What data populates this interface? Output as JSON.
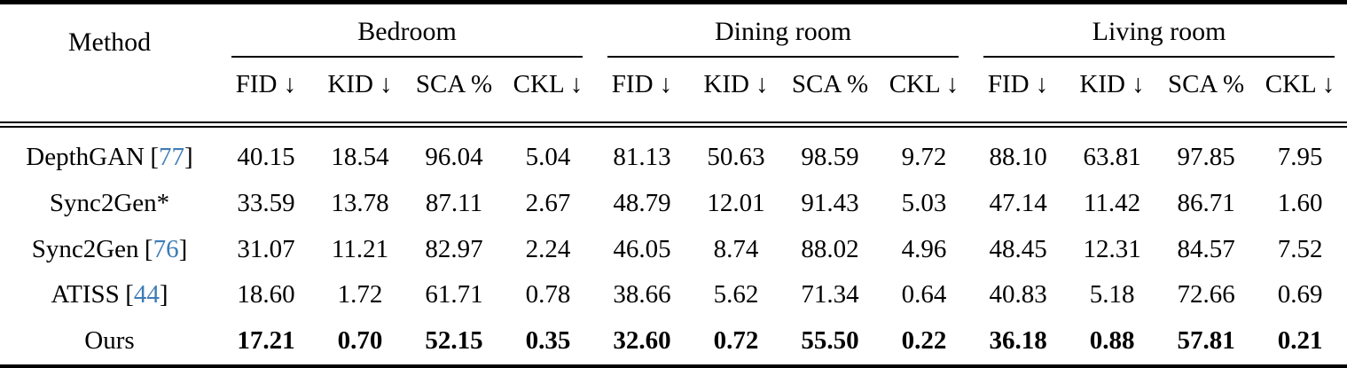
{
  "table": {
    "method_header": "Method",
    "groups": [
      {
        "label": "Bedroom"
      },
      {
        "label": "Dining room"
      },
      {
        "label": "Living room"
      }
    ],
    "metric_labels": [
      "FID ↓",
      "KID ↓",
      "SCA %",
      "CKL ↓"
    ],
    "rows": [
      {
        "method": "DepthGAN",
        "cite_open": "[",
        "cite_num": "77",
        "cite_close": "]",
        "values": [
          "40.15",
          "18.54",
          "96.04",
          "5.04",
          "81.13",
          "50.63",
          "98.59",
          "9.72",
          "88.10",
          "63.81",
          "97.85",
          "7.95"
        ]
      },
      {
        "method": "Sync2Gen*",
        "values": [
          "33.59",
          "13.78",
          "87.11",
          "2.67",
          "48.79",
          "12.01",
          "91.43",
          "5.03",
          "47.14",
          "11.42",
          "86.71",
          "1.60"
        ]
      },
      {
        "method": "Sync2Gen",
        "cite_open": "[",
        "cite_num": "76",
        "cite_close": "]",
        "values": [
          "31.07",
          "11.21",
          "82.97",
          "2.24",
          "46.05",
          "8.74",
          "88.02",
          "4.96",
          "48.45",
          "12.31",
          "84.57",
          "7.52"
        ]
      },
      {
        "method": "ATISS",
        "cite_open": "[",
        "cite_num": "44",
        "cite_close": "]",
        "values": [
          "18.60",
          "1.72",
          "61.71",
          "0.78",
          "38.66",
          "5.62",
          "71.34",
          "0.64",
          "40.83",
          "5.18",
          "72.66",
          "0.69"
        ]
      },
      {
        "method": "Ours",
        "bold": true,
        "values": [
          "17.21",
          "0.70",
          "52.15",
          "0.35",
          "32.60",
          "0.72",
          "55.50",
          "0.22",
          "36.18",
          "0.88",
          "57.81",
          "0.21"
        ]
      }
    ],
    "colors": {
      "citation": "#3f7cb6",
      "text": "#000000",
      "rule": "#000000",
      "background": "#ffffff"
    }
  }
}
